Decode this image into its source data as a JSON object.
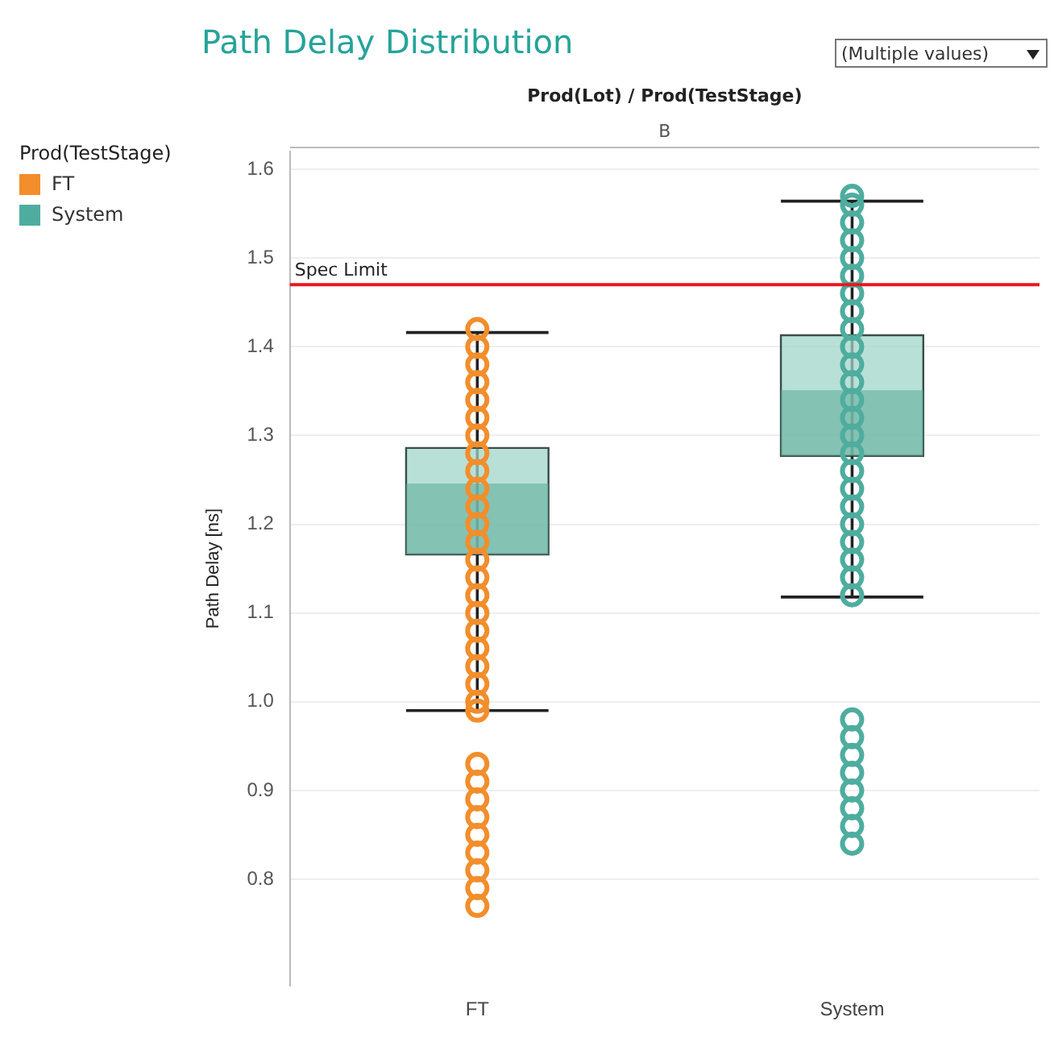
{
  "chart_data": {
    "type": "box",
    "title": "Path Delay Distribution",
    "subtitle": "Prod(Lot) / Prod(TestStage)",
    "ylabel": "Path Delay [ns]",
    "legend_title": "Prod(TestStage)",
    "annotations": [
      "B",
      "(Multiple values)"
    ],
    "categories": [
      "FT",
      "System"
    ],
    "boxes": [
      {
        "low": 0.99,
        "q1": 1.166,
        "median": 1.246,
        "q3": 1.286,
        "high": 1.416
      },
      {
        "low": 1.118,
        "q1": 1.277,
        "median": 1.351,
        "q3": 1.413,
        "high": 1.564
      }
    ],
    "series": [
      {
        "name": "FT",
        "type": "scatter",
        "color": "#f28e2b",
        "x": [
          "FT",
          "FT",
          "FT",
          "FT",
          "FT",
          "FT",
          "FT",
          "FT",
          "FT",
          "FT",
          "FT",
          "FT",
          "FT",
          "FT",
          "FT",
          "FT",
          "FT",
          "FT",
          "FT",
          "FT",
          "FT",
          "FT",
          "FT",
          "FT",
          "FT",
          "FT",
          "FT",
          "FT",
          "FT",
          "FT",
          "FT",
          "FT"
        ],
        "values": [
          0.77,
          0.79,
          0.81,
          0.83,
          0.85,
          0.87,
          0.89,
          0.91,
          0.93,
          0.99,
          1.0,
          1.02,
          1.04,
          1.06,
          1.08,
          1.1,
          1.12,
          1.14,
          1.16,
          1.18,
          1.2,
          1.22,
          1.24,
          1.26,
          1.28,
          1.3,
          1.32,
          1.34,
          1.36,
          1.38,
          1.4,
          1.42
        ]
      },
      {
        "name": "System",
        "type": "scatter",
        "color": "#4ead9f",
        "x": [
          "System",
          "System",
          "System",
          "System",
          "System",
          "System",
          "System",
          "System",
          "System",
          "System",
          "System",
          "System",
          "System",
          "System",
          "System",
          "System",
          "System",
          "System",
          "System",
          "System",
          "System",
          "System",
          "System",
          "System",
          "System",
          "System",
          "System",
          "System",
          "System",
          "System",
          "System",
          "System"
        ],
        "values": [
          0.84,
          0.86,
          0.88,
          0.9,
          0.92,
          0.94,
          0.96,
          0.98,
          1.12,
          1.14,
          1.16,
          1.18,
          1.2,
          1.22,
          1.24,
          1.26,
          1.28,
          1.3,
          1.32,
          1.34,
          1.36,
          1.38,
          1.4,
          1.42,
          1.44,
          1.46,
          1.48,
          1.5,
          1.52,
          1.54,
          1.56,
          1.57
        ]
      }
    ],
    "ylim": [
      0.68,
      1.62
    ],
    "yticks": [
      0.8,
      0.9,
      {
        "value": 1,
        "label": "1.0"
      },
      1.1,
      1.2,
      1.3,
      1.4,
      1.5,
      1.6
    ],
    "ref_lines": [
      {
        "axis": "y",
        "value": 1.47,
        "label": "Spec Limit",
        "color": "#e8171f"
      }
    ],
    "grid": "y",
    "legend": "top left",
    "marker": "circle"
  }
}
